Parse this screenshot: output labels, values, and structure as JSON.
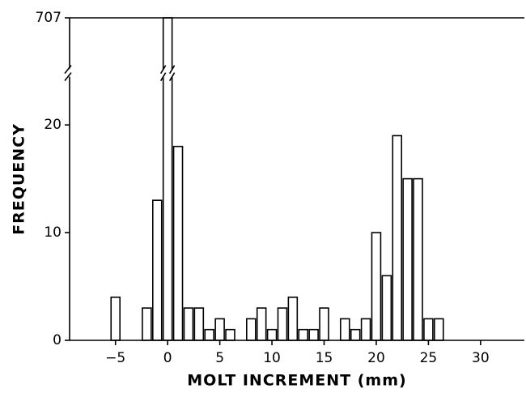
{
  "chart_data": {
    "type": "bar",
    "xlabel": "MOLT INCREMENT (mm)",
    "ylabel": "FREQUENCY",
    "x": [
      -5,
      -2,
      -1,
      0,
      1,
      2,
      3,
      4,
      5,
      6,
      8,
      9,
      10,
      11,
      12,
      13,
      14,
      15,
      17,
      18,
      19,
      20,
      21,
      22,
      23,
      24,
      25,
      26
    ],
    "values": [
      4,
      3,
      13,
      707,
      18,
      3,
      3,
      1,
      2,
      1,
      2,
      3,
      1,
      3,
      4,
      1,
      1,
      3,
      2,
      1,
      2,
      10,
      6,
      19,
      15,
      15,
      2,
      2
    ],
    "color": "#ffffff",
    "xlim": [
      -9.4,
      34.2
    ],
    "xticks": [
      {
        "value": -5,
        "label": "−5"
      },
      0,
      5,
      10,
      15,
      20,
      25,
      30
    ],
    "ylim": [
      0,
      707
    ],
    "yticks": [
      0,
      10,
      20,
      707
    ],
    "grid": false
  }
}
